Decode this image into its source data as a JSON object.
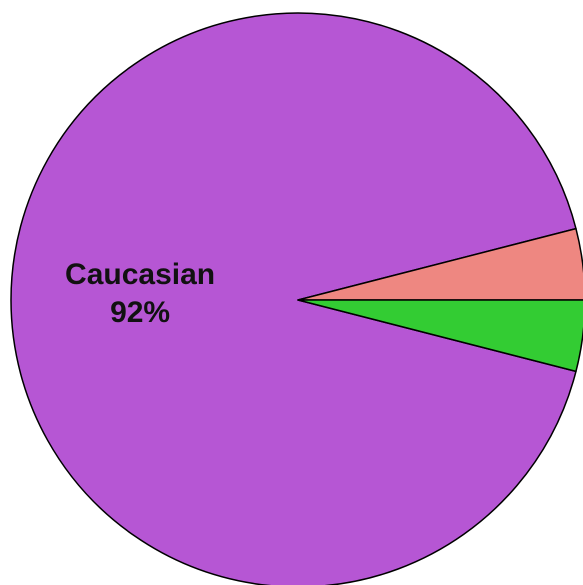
{
  "chart_data": {
    "type": "pie",
    "title": "",
    "slices": [
      {
        "label": "Caucasian",
        "value": 92,
        "value_label": "92%",
        "color": "#B656D4",
        "show_label": true
      },
      {
        "label": "",
        "value": 4,
        "value_label": "",
        "color": "#EE8781",
        "show_label": false
      },
      {
        "label": "",
        "value": 4,
        "value_label": "",
        "color": "#33CC33",
        "show_label": false
      }
    ],
    "legend": "none"
  }
}
